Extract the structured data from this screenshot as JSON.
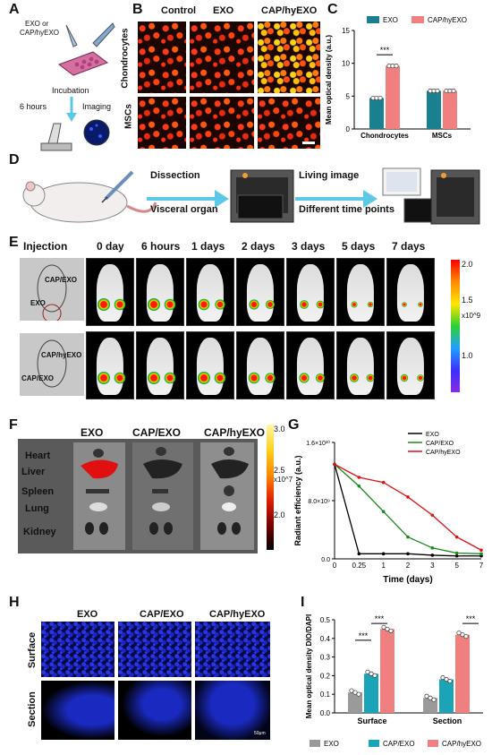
{
  "panels": {
    "A": "A",
    "B": "B",
    "C": "C",
    "D": "D",
    "E": "E",
    "F": "F",
    "G": "G",
    "H": "H",
    "I": "I"
  },
  "panelA": {
    "label1": "EXO or",
    "label2": "CAP/hyEXO",
    "incubation": "Incubation",
    "time": "6 hours",
    "imaging": "Imaging"
  },
  "panelB": {
    "cols": [
      "Control",
      "EXO",
      "CAP/hyEXO"
    ],
    "rows": [
      "Chondrocytes",
      "MSCs"
    ]
  },
  "panelD": {
    "dissection": "Dissection",
    "visceral": "Visceral organ",
    "living": "Living image",
    "timepoints": "Different time points"
  },
  "panelE": {
    "injection": "Injection",
    "days": [
      "0 day",
      "6 hours",
      "1 days",
      "2 days",
      "3 days",
      "5 days",
      "7 days"
    ],
    "mouse1_labels": [
      "CAP/EXO",
      "EXO"
    ],
    "mouse2_labels": [
      "CAP/hyEXO",
      "CAP/EXO"
    ],
    "colorbar_ticks": [
      "2.0",
      "1.5",
      "x10^9",
      "1.0"
    ]
  },
  "panelF": {
    "cols": [
      "EXO",
      "CAP/EXO",
      "CAP/hyEXO"
    ],
    "organs": [
      "Heart",
      "Liver",
      "Spleen",
      "Lung",
      "Kidney"
    ],
    "colorbar_ticks": [
      "3.0",
      "2.5",
      "x10^7",
      "2.0"
    ]
  },
  "panelH": {
    "cols": [
      "EXO",
      "CAP/EXO",
      "CAP/hyEXO"
    ],
    "rows": [
      "Surface",
      "Section"
    ],
    "scale": "50μm"
  },
  "colors": {
    "exo_teal": "#1a7f8e",
    "hyexo_pink": "#f08080",
    "gray": "#9a9a9a",
    "teal2": "#1ba3b8",
    "black": "#000000",
    "green": "#1a8a1a",
    "red": "#e01010"
  },
  "chart_data": [
    {
      "id": "C",
      "type": "bar",
      "ylabel": "Mean optical density (a.u.)",
      "categories": [
        "Chondrocytes",
        "MSCs"
      ],
      "series": [
        {
          "name": "EXO",
          "values": [
            4.7,
            5.8
          ]
        },
        {
          "name": "CAP/hyEXO",
          "values": [
            9.6,
            5.8
          ]
        }
      ],
      "ylim": [
        0,
        15
      ],
      "yticks": [
        "0",
        "5",
        "10",
        "15"
      ],
      "legend_position": "top",
      "significance": [
        "***"
      ]
    },
    {
      "id": "G",
      "type": "line",
      "ylabel": "Radiant efficiency (a.u.)",
      "xlabel": "Time (days)",
      "x": [
        "0",
        "0.25",
        "1",
        "2",
        "3",
        "5",
        "7"
      ],
      "series": [
        {
          "name": "EXO",
          "values": [
            1.3,
            0.07,
            0.07,
            0.07,
            0.05,
            0.04,
            0.04
          ]
        },
        {
          "name": "CAP/EXO",
          "values": [
            1.3,
            1.0,
            0.65,
            0.3,
            0.15,
            0.08,
            0.07
          ]
        },
        {
          "name": "CAP/hyEXO",
          "values": [
            1.3,
            1.12,
            1.05,
            0.85,
            0.6,
            0.3,
            0.12
          ]
        }
      ],
      "ylim": [
        0,
        1.6
      ],
      "yticks": [
        "0.0",
        "8.0×10⁹",
        "1.6×10¹⁰"
      ],
      "legend_position": "top-right"
    },
    {
      "id": "I",
      "type": "bar",
      "ylabel": "Mean optical density DIO/DAPI",
      "categories": [
        "Surface",
        "Section"
      ],
      "series": [
        {
          "name": "EXO",
          "values": [
            0.11,
            0.08
          ]
        },
        {
          "name": "CAP/EXO",
          "values": [
            0.21,
            0.18
          ]
        },
        {
          "name": "CAP/hyEXO",
          "values": [
            0.45,
            0.42
          ]
        }
      ],
      "ylim": [
        0,
        0.5
      ],
      "yticks": [
        "0.0",
        "0.1",
        "0.2",
        "0.3",
        "0.4",
        "0.5"
      ],
      "legend_position": "bottom",
      "significance": [
        "***",
        "***",
        "***"
      ]
    }
  ]
}
